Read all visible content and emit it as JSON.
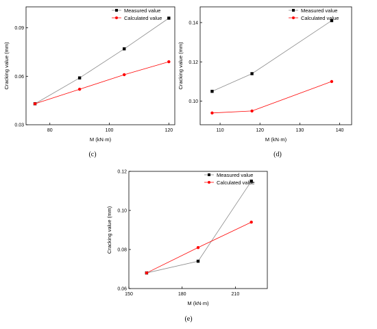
{
  "chart_data": [
    {
      "type": "line",
      "panel_label": "(c)",
      "xlabel": "M (kN·m)",
      "ylabel": "Cracking value (mm)",
      "xlim": [
        72,
        122
      ],
      "ylim": [
        0.03,
        0.103
      ],
      "xticks": [
        80,
        100,
        120
      ],
      "yticks": [
        0.03,
        0.06,
        0.09
      ],
      "ytick_labels": [
        "0.03",
        "0.06",
        "0.09"
      ],
      "legend": "top-right",
      "series": [
        {
          "name": "Measured value",
          "color": "#000000",
          "marker": "square",
          "line": "#8a8a8a",
          "x": [
            75,
            90,
            105,
            120
          ],
          "y": [
            0.043,
            0.059,
            0.077,
            0.096
          ]
        },
        {
          "name": "Calculated value",
          "color": "#ff0000",
          "marker": "circle",
          "line": "#ff0000",
          "x": [
            75,
            90,
            105,
            120
          ],
          "y": [
            0.043,
            0.052,
            0.061,
            0.069
          ]
        }
      ]
    },
    {
      "type": "line",
      "panel_label": "(d)",
      "xlabel": "M (kN·m)",
      "ylabel": "Cracking value (mm)",
      "xlim": [
        105,
        143
      ],
      "ylim": [
        0.088,
        0.148
      ],
      "xticks": [
        110,
        120,
        130,
        140
      ],
      "yticks": [
        0.1,
        0.12,
        0.14
      ],
      "ytick_labels": [
        "0.10",
        "0.12",
        "0.14"
      ],
      "legend": "top-right",
      "series": [
        {
          "name": "Measured value",
          "color": "#000000",
          "marker": "square",
          "line": "#8a8a8a",
          "x": [
            108,
            118,
            138
          ],
          "y": [
            0.105,
            0.114,
            0.141
          ]
        },
        {
          "name": "Calculated value",
          "color": "#ff0000",
          "marker": "circle",
          "line": "#ff0000",
          "x": [
            108,
            118,
            138
          ],
          "y": [
            0.094,
            0.095,
            0.11
          ]
        }
      ]
    },
    {
      "type": "line",
      "panel_label": "(e)",
      "xlabel": "M (kN·m)",
      "ylabel": "Cracking value (mm)",
      "xlim": [
        150,
        228
      ],
      "ylim": [
        0.06,
        0.12
      ],
      "xticks": [
        150,
        180,
        210
      ],
      "yticks": [
        0.06,
        0.08,
        0.1,
        0.12
      ],
      "ytick_labels": [
        "0.06",
        "0.08",
        "0.10",
        "0.12"
      ],
      "legend": "top-right",
      "series": [
        {
          "name": "Measured value",
          "color": "#000000",
          "marker": "square",
          "line": "#8a8a8a",
          "x": [
            160,
            189,
            219
          ],
          "y": [
            0.068,
            0.074,
            0.115
          ]
        },
        {
          "name": "Calculated value",
          "color": "#ff0000",
          "marker": "circle",
          "line": "#ff0000",
          "x": [
            160,
            189,
            219
          ],
          "y": [
            0.068,
            0.081,
            0.094
          ]
        }
      ]
    }
  ]
}
